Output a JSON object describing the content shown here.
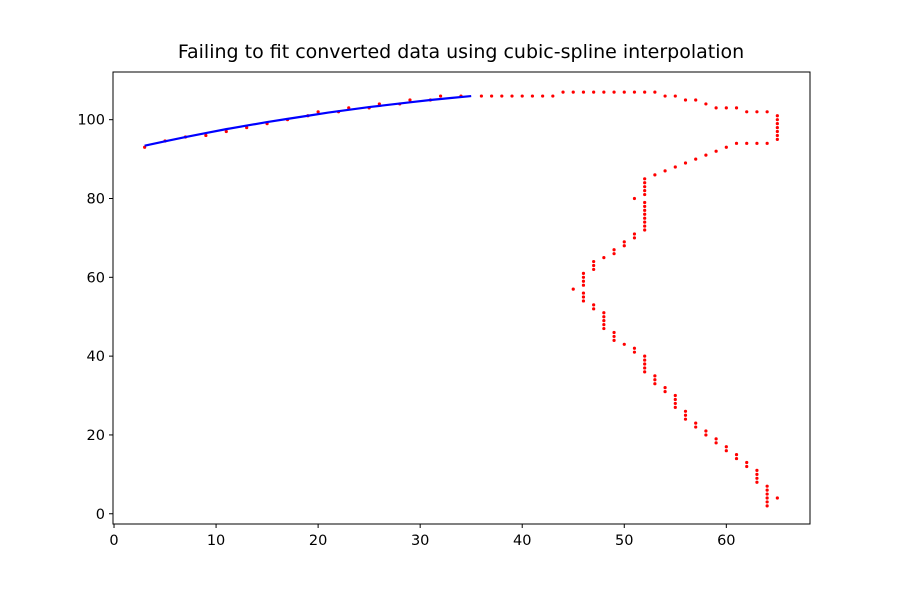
{
  "chart_data": {
    "type": "scatter",
    "title": "Failing to fit converted data using cubic-spline interpolation",
    "xlabel": "",
    "ylabel": "",
    "xlim": [
      -0.1,
      68.2
    ],
    "ylim": [
      -2.6,
      112.1
    ],
    "xticks": [
      0,
      10,
      20,
      30,
      40,
      50,
      60
    ],
    "yticks": [
      0,
      20,
      40,
      60,
      80,
      100
    ],
    "grid": false,
    "series": [
      {
        "type": "scatter",
        "color": "#ff0000",
        "points": [
          [
            3,
            93
          ],
          [
            5,
            94.6
          ],
          [
            7,
            95.6
          ],
          [
            9,
            96
          ],
          [
            11,
            97
          ],
          [
            13,
            98
          ],
          [
            15,
            99
          ],
          [
            17,
            100
          ],
          [
            19,
            101
          ],
          [
            20,
            102
          ],
          [
            22,
            102
          ],
          [
            23,
            103
          ],
          [
            25,
            103
          ],
          [
            26,
            104
          ],
          [
            28,
            104
          ],
          [
            29,
            105
          ],
          [
            31,
            105
          ],
          [
            32,
            106
          ],
          [
            34,
            106
          ],
          [
            36,
            106
          ],
          [
            37,
            106
          ],
          [
            38,
            106
          ],
          [
            39,
            106
          ],
          [
            40,
            106
          ],
          [
            41,
            106
          ],
          [
            42,
            106
          ],
          [
            43,
            106
          ],
          [
            44,
            107
          ],
          [
            45,
            107
          ],
          [
            46,
            107
          ],
          [
            47,
            107
          ],
          [
            48,
            107
          ],
          [
            49,
            107
          ],
          [
            50,
            107
          ],
          [
            51,
            107
          ],
          [
            52,
            107
          ],
          [
            53,
            107
          ],
          [
            54,
            106
          ],
          [
            55,
            106
          ],
          [
            56,
            105
          ],
          [
            57,
            105
          ],
          [
            58,
            104
          ],
          [
            59,
            103
          ],
          [
            60,
            103
          ],
          [
            61,
            103
          ],
          [
            62,
            102
          ],
          [
            63,
            102
          ],
          [
            64,
            102
          ],
          [
            65,
            101
          ],
          [
            65,
            100
          ],
          [
            65,
            99
          ],
          [
            65,
            98
          ],
          [
            65,
            97
          ],
          [
            65,
            96
          ],
          [
            65,
            95
          ],
          [
            64,
            94
          ],
          [
            63,
            94
          ],
          [
            62,
            94
          ],
          [
            61,
            94
          ],
          [
            60,
            93
          ],
          [
            59,
            92
          ],
          [
            58,
            91
          ],
          [
            57,
            90
          ],
          [
            56,
            89
          ],
          [
            55,
            88
          ],
          [
            54,
            87
          ],
          [
            53,
            86
          ],
          [
            52,
            85
          ],
          [
            52,
            84
          ],
          [
            52,
            83
          ],
          [
            52,
            82
          ],
          [
            52,
            81
          ],
          [
            51,
            80
          ],
          [
            52,
            79
          ],
          [
            52,
            78
          ],
          [
            52,
            77
          ],
          [
            52,
            76
          ],
          [
            52,
            75
          ],
          [
            52,
            74
          ],
          [
            52,
            73
          ],
          [
            52,
            72
          ],
          [
            51,
            71
          ],
          [
            51,
            70
          ],
          [
            50,
            69
          ],
          [
            50,
            68
          ],
          [
            49,
            67
          ],
          [
            49,
            66
          ],
          [
            48,
            65
          ],
          [
            47,
            64
          ],
          [
            47,
            63
          ],
          [
            47,
            62
          ],
          [
            46,
            61
          ],
          [
            46,
            60
          ],
          [
            46,
            59
          ],
          [
            46,
            58
          ],
          [
            45,
            57
          ],
          [
            46,
            56
          ],
          [
            46,
            55
          ],
          [
            46,
            54
          ],
          [
            47,
            53
          ],
          [
            47,
            52
          ],
          [
            48,
            51
          ],
          [
            48,
            50
          ],
          [
            48,
            49
          ],
          [
            48,
            48
          ],
          [
            48,
            47
          ],
          [
            49,
            46
          ],
          [
            49,
            45
          ],
          [
            49,
            44
          ],
          [
            50,
            43
          ],
          [
            51,
            42
          ],
          [
            51,
            41
          ],
          [
            52,
            40
          ],
          [
            52,
            39
          ],
          [
            52,
            38
          ],
          [
            52,
            37
          ],
          [
            52,
            36
          ],
          [
            53,
            35
          ],
          [
            53,
            34
          ],
          [
            53,
            33
          ],
          [
            54,
            32
          ],
          [
            54,
            31
          ],
          [
            55,
            30
          ],
          [
            55,
            29
          ],
          [
            55,
            28
          ],
          [
            55,
            27
          ],
          [
            56,
            26
          ],
          [
            56,
            25
          ],
          [
            56,
            24
          ],
          [
            57,
            23
          ],
          [
            57,
            22
          ],
          [
            58,
            21
          ],
          [
            58,
            20
          ],
          [
            59,
            19
          ],
          [
            59,
            18
          ],
          [
            60,
            17
          ],
          [
            60,
            16
          ],
          [
            61,
            15
          ],
          [
            61,
            14
          ],
          [
            62,
            13
          ],
          [
            62,
            12
          ],
          [
            63,
            11
          ],
          [
            63,
            10
          ],
          [
            63,
            9
          ],
          [
            63,
            8
          ],
          [
            64,
            7
          ],
          [
            64,
            6
          ],
          [
            64,
            5
          ],
          [
            64,
            4
          ],
          [
            65,
            4
          ],
          [
            64,
            3
          ],
          [
            64,
            2
          ]
        ]
      },
      {
        "type": "line",
        "color": "#0000ff",
        "x": [
          3,
          5,
          7,
          9,
          11,
          13,
          15,
          17,
          19,
          21,
          23,
          25,
          27,
          29,
          31,
          33,
          35
        ],
        "y": [
          93.4,
          94.5,
          95.6,
          96.6,
          97.6,
          98.5,
          99.4,
          100.2,
          101.0,
          101.8,
          102.5,
          103.2,
          103.8,
          104.4,
          105.0,
          105.5,
          106.0
        ]
      }
    ]
  }
}
